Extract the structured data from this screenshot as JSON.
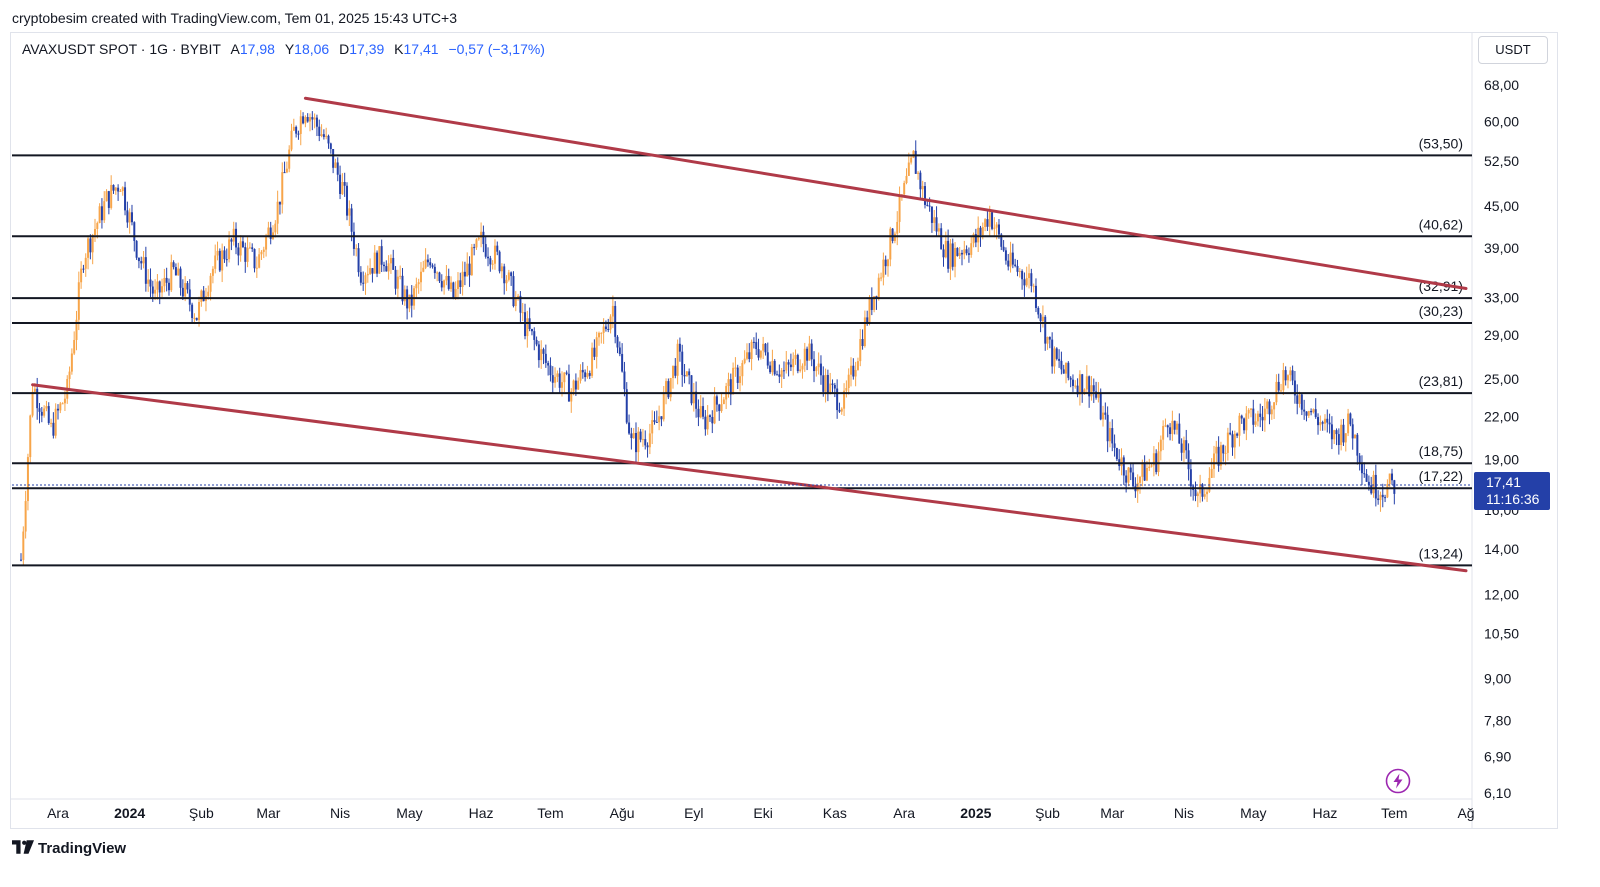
{
  "caption": "cryptobesim created with TradingView.com, Tem 01, 2025 15:43 UTC+3",
  "legend": {
    "symbol": "AVAXUSDT SPOT · 1G · BYBIT",
    "open_label": "A",
    "open": "17,98",
    "high_label": "Y",
    "high": "18,06",
    "low_label": "D",
    "low": "17,39",
    "close_label": "K",
    "close": "17,41",
    "change": "−0,57 (−3,17%)"
  },
  "currency": "USDT",
  "brand": "TradingView",
  "colors": {
    "bull": "#f7a54a",
    "bear": "#2440a8",
    "trendline": "#b03a48",
    "level": "#131722",
    "price_tag": "#2440a8"
  },
  "chart_data": {
    "type": "candlestick",
    "y_scale": "log",
    "ylim": [
      6.1,
      75
    ],
    "y_ticks": [
      "68,00",
      "60,00",
      "52,50",
      "45,00",
      "39,00",
      "33,00",
      "29,00",
      "25,00",
      "22,00",
      "19,00",
      "16,00",
      "14,00",
      "12,00",
      "10,50",
      "9,00",
      "7,80",
      "6,90",
      "6,10"
    ],
    "x_ticks": [
      {
        "label": "Ara",
        "date": "2023-12-01"
      },
      {
        "label": "2024",
        "date": "2024-01-01",
        "bold": true
      },
      {
        "label": "Şub",
        "date": "2024-02-01"
      },
      {
        "label": "Mar",
        "date": "2024-03-01"
      },
      {
        "label": "Nis",
        "date": "2024-04-01"
      },
      {
        "label": "May",
        "date": "2024-05-01"
      },
      {
        "label": "Haz",
        "date": "2024-06-01"
      },
      {
        "label": "Tem",
        "date": "2024-07-01"
      },
      {
        "label": "Ağu",
        "date": "2024-08-01"
      },
      {
        "label": "Eyl",
        "date": "2024-09-01"
      },
      {
        "label": "Eki",
        "date": "2024-10-01"
      },
      {
        "label": "Kas",
        "date": "2024-11-01"
      },
      {
        "label": "Ara",
        "date": "2024-12-01"
      },
      {
        "label": "2025",
        "date": "2025-01-01",
        "bold": true
      },
      {
        "label": "Şub",
        "date": "2025-02-01"
      },
      {
        "label": "Mar",
        "date": "2025-03-01"
      },
      {
        "label": "Nis",
        "date": "2025-04-01"
      },
      {
        "label": "May",
        "date": "2025-05-01"
      },
      {
        "label": "Haz",
        "date": "2025-06-01"
      },
      {
        "label": "Tem",
        "date": "2025-07-01"
      },
      {
        "label": "Ağ",
        "date": "2025-08-01"
      }
    ],
    "price_path": [
      [
        "2023-11-15",
        13.5
      ],
      [
        "2023-11-20",
        24.5
      ],
      [
        "2023-11-28",
        21.0
      ],
      [
        "2023-12-05",
        24.0
      ],
      [
        "2023-12-12",
        38.0
      ],
      [
        "2023-12-22",
        46.0
      ],
      [
        "2023-12-28",
        49.0
      ],
      [
        "2024-01-05",
        38.0
      ],
      [
        "2024-01-12",
        33.0
      ],
      [
        "2024-01-20",
        36.0
      ],
      [
        "2024-01-30",
        31.0
      ],
      [
        "2024-02-05",
        36.0
      ],
      [
        "2024-02-15",
        40.0
      ],
      [
        "2024-02-25",
        37.0
      ],
      [
        "2024-03-05",
        45.0
      ],
      [
        "2024-03-12",
        58.0
      ],
      [
        "2024-03-17",
        63.0
      ],
      [
        "2024-03-25",
        57.0
      ],
      [
        "2024-04-02",
        48.0
      ],
      [
        "2024-04-10",
        36.0
      ],
      [
        "2024-04-20",
        38.0
      ],
      [
        "2024-05-01",
        32.0
      ],
      [
        "2024-05-10",
        38.0
      ],
      [
        "2024-05-20",
        33.0
      ],
      [
        "2024-06-01",
        40.0
      ],
      [
        "2024-06-10",
        37.0
      ],
      [
        "2024-06-20",
        30.0
      ],
      [
        "2024-06-30",
        26.0
      ],
      [
        "2024-07-10",
        24.0
      ],
      [
        "2024-07-20",
        27.0
      ],
      [
        "2024-07-28",
        32.0
      ],
      [
        "2024-08-05",
        20.0
      ],
      [
        "2024-08-15",
        21.0
      ],
      [
        "2024-08-25",
        27.0
      ],
      [
        "2024-09-05",
        21.5
      ],
      [
        "2024-09-15",
        24.0
      ],
      [
        "2024-09-28",
        28.0
      ],
      [
        "2024-10-10",
        25.5
      ],
      [
        "2024-10-20",
        27.5
      ],
      [
        "2024-10-30",
        24.0
      ],
      [
        "2024-11-05",
        23.0
      ],
      [
        "2024-11-15",
        31.0
      ],
      [
        "2024-11-25",
        40.0
      ],
      [
        "2024-12-05",
        53.0
      ],
      [
        "2024-12-10",
        46.0
      ],
      [
        "2024-12-20",
        38.0
      ],
      [
        "2025-01-01",
        40.0
      ],
      [
        "2025-01-07",
        44.0
      ],
      [
        "2025-01-15",
        37.0
      ],
      [
        "2025-01-25",
        35.0
      ],
      [
        "2025-02-03",
        27.0
      ],
      [
        "2025-02-10",
        25.0
      ],
      [
        "2025-02-20",
        24.5
      ],
      [
        "2025-03-01",
        20.0
      ],
      [
        "2025-03-10",
        17.5
      ],
      [
        "2025-03-20",
        19.0
      ],
      [
        "2025-03-25",
        22.0
      ],
      [
        "2025-04-01",
        19.5
      ],
      [
        "2025-04-07",
        16.5
      ],
      [
        "2025-04-15",
        19.0
      ],
      [
        "2025-04-25",
        21.5
      ],
      [
        "2025-05-05",
        22.0
      ],
      [
        "2025-05-14",
        25.5
      ],
      [
        "2025-05-25",
        22.5
      ],
      [
        "2025-06-05",
        20.5
      ],
      [
        "2025-06-12",
        21.5
      ],
      [
        "2025-06-20",
        17.5
      ],
      [
        "2025-06-25",
        17.2
      ],
      [
        "2025-07-01",
        17.41
      ]
    ],
    "horizontal_levels": [
      {
        "value": 53.5,
        "label": "(53,50)"
      },
      {
        "value": 40.62,
        "label": "(40,62)"
      },
      {
        "value": 32.91,
        "label": "(32,91)"
      },
      {
        "value": 30.23,
        "label": "(30,23)"
      },
      {
        "value": 23.81,
        "label": "(23,81)"
      },
      {
        "value": 18.75,
        "label": "(18,75)"
      },
      {
        "value": 17.22,
        "label": "(17,22)"
      },
      {
        "value": 13.24,
        "label": "(13,24)"
      }
    ],
    "trendlines": [
      {
        "from": [
          "2024-03-17",
          65.0
        ],
        "to": [
          "2025-08-01",
          34.0
        ]
      },
      {
        "from": [
          "2023-11-20",
          24.5
        ],
        "to": [
          "2025-08-01",
          13.0
        ]
      }
    ],
    "last_price": {
      "value": 17.41,
      "label": "17,41",
      "countdown": "11:16:36"
    }
  }
}
